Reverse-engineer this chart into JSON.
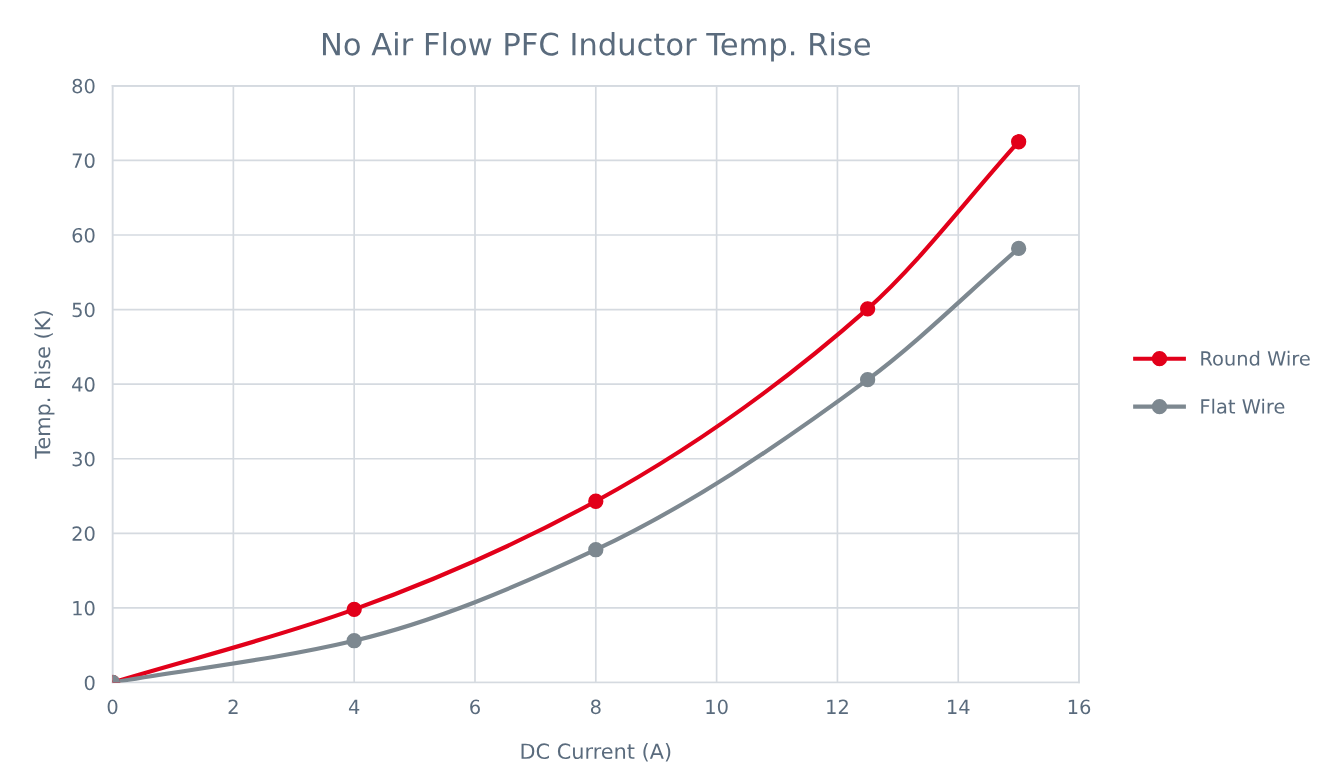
{
  "chart_data": {
    "type": "line",
    "title": "No Air Flow PFC Inductor Temp. Rise",
    "xlabel": "DC Current (A)",
    "ylabel": "Temp. Rise (K)",
    "series": [
      {
        "name": "Round Wire",
        "color": "#e2001a",
        "x": [
          0,
          4,
          8,
          12.5,
          15
        ],
        "values": [
          0,
          9.8,
          24.3,
          50.1,
          72.5
        ]
      },
      {
        "name": "Flat Wire",
        "color": "#7d8890",
        "x": [
          0,
          4,
          8,
          12.5,
          15
        ],
        "values": [
          0,
          5.6,
          17.8,
          40.6,
          58.2
        ]
      }
    ],
    "xlim": [
      0,
      16
    ],
    "xticks": [
      0,
      2,
      4,
      6,
      8,
      10,
      12,
      14,
      16
    ],
    "ylim": [
      0,
      80
    ],
    "yticks": [
      0,
      10,
      20,
      30,
      40,
      50,
      60,
      70,
      80
    ],
    "grid": true,
    "legend": "right",
    "marker": "circle",
    "line_style": "solid"
  }
}
